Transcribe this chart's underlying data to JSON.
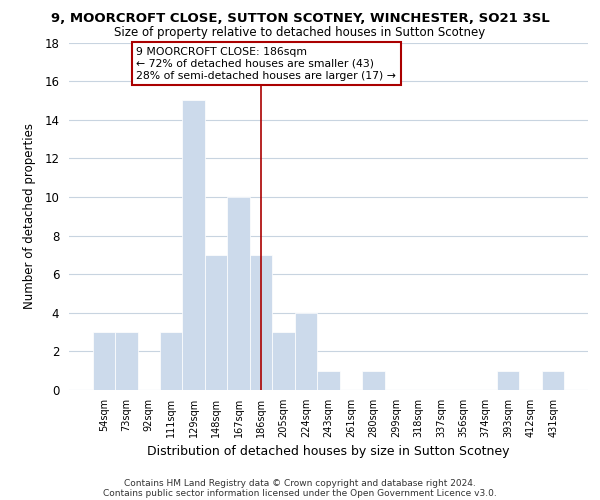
{
  "title": "9, MOORCROFT CLOSE, SUTTON SCOTNEY, WINCHESTER, SO21 3SL",
  "subtitle": "Size of property relative to detached houses in Sutton Scotney",
  "xlabel": "Distribution of detached houses by size in Sutton Scotney",
  "ylabel": "Number of detached properties",
  "bar_labels": [
    "54sqm",
    "73sqm",
    "92sqm",
    "111sqm",
    "129sqm",
    "148sqm",
    "167sqm",
    "186sqm",
    "205sqm",
    "224sqm",
    "243sqm",
    "261sqm",
    "280sqm",
    "299sqm",
    "318sqm",
    "337sqm",
    "356sqm",
    "374sqm",
    "393sqm",
    "412sqm",
    "431sqm"
  ],
  "bar_values": [
    3,
    3,
    0,
    3,
    15,
    7,
    10,
    7,
    3,
    4,
    1,
    0,
    1,
    0,
    0,
    0,
    0,
    0,
    1,
    0,
    1
  ],
  "bar_color": "#ccdaeb",
  "bar_edge_color": "#ffffff",
  "vline_x": 7,
  "vline_color": "#aa0000",
  "ylim": [
    0,
    18
  ],
  "yticks": [
    0,
    2,
    4,
    6,
    8,
    10,
    12,
    14,
    16,
    18
  ],
  "annotation_title": "9 MOORCROFT CLOSE: 186sqm",
  "annotation_line1": "← 72% of detached houses are smaller (43)",
  "annotation_line2": "28% of semi-detached houses are larger (17) →",
  "annotation_box_color": "#ffffff",
  "annotation_box_edge": "#aa0000",
  "background_color": "#ffffff",
  "grid_color": "#c8d4e0",
  "footer1": "Contains HM Land Registry data © Crown copyright and database right 2024.",
  "footer2": "Contains public sector information licensed under the Open Government Licence v3.0."
}
